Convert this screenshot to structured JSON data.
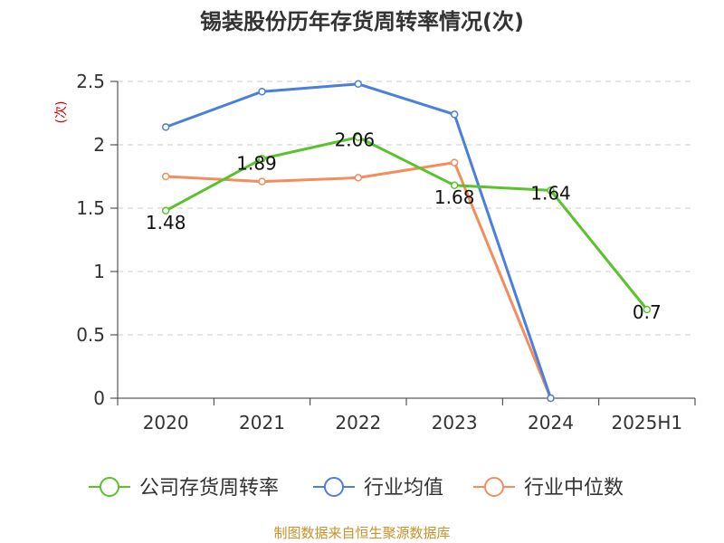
{
  "chart_data": {
    "type": "line",
    "title": "锡装股份历年存货周转率情况(次)",
    "ylabel": "(次)",
    "xlabel": "",
    "categories": [
      "2020",
      "2021",
      "2022",
      "2023",
      "2024",
      "2025H1"
    ],
    "ylim": [
      0,
      2.5
    ],
    "yticks": [
      "0",
      "0.5",
      "1",
      "1.5",
      "2",
      "2.5"
    ],
    "grid": true,
    "legend_position": "bottom",
    "series": [
      {
        "name": "公司存货周转率",
        "color": "#5ac32c",
        "values": [
          1.48,
          1.89,
          2.06,
          1.68,
          1.64,
          0.7
        ],
        "labels": [
          "1.48",
          "1.89",
          "2.06",
          "1.68",
          "1.64",
          "0.7"
        ]
      },
      {
        "name": "行业均值",
        "color": "#4a7fdc",
        "values": [
          2.14,
          2.42,
          2.48,
          2.24,
          0,
          null
        ]
      },
      {
        "name": "行业中位数",
        "color": "#f48c5c",
        "values": [
          1.75,
          1.71,
          1.74,
          1.86,
          0,
          null
        ]
      }
    ]
  },
  "source_note": "制图数据来自恒生聚源数据库",
  "colors": {
    "title": "#333333",
    "ylabel": "#cc0000",
    "axis": "#333333",
    "grid": "#cccccc",
    "source": "#c8912a"
  }
}
